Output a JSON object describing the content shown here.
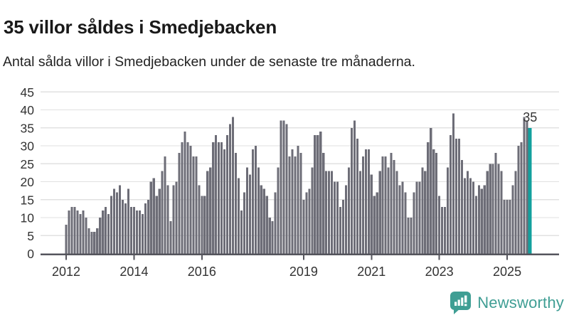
{
  "header": {
    "title": "35 villor såldes i Smedjebacken",
    "subtitle": "Antal sålda villor i Smedjebacken under de senaste tre månaderna."
  },
  "chart_data": {
    "type": "bar",
    "title": "35 villor såldes i Smedjebacken",
    "subtitle": "Antal sålda villor i Smedjebacken under de senaste tre månaderna.",
    "xlabel": "",
    "ylabel": "",
    "ylim": [
      0,
      45
    ],
    "yticks": [
      0,
      5,
      10,
      15,
      20,
      25,
      30,
      35,
      40,
      45
    ],
    "grid": true,
    "x_ticks": [
      {
        "label": "2012",
        "index": 0
      },
      {
        "label": "2014",
        "index": 24
      },
      {
        "label": "2016",
        "index": 48
      },
      {
        "label": "2019",
        "index": 84
      },
      {
        "label": "2021",
        "index": 108
      },
      {
        "label": "2023",
        "index": 132
      },
      {
        "label": "2025",
        "index": 156
      }
    ],
    "values": [
      8,
      12,
      13,
      13,
      12,
      11,
      12,
      10,
      7,
      6,
      6,
      7,
      10,
      12,
      13,
      11,
      16,
      18,
      17,
      19,
      15,
      14,
      18,
      13,
      13,
      12,
      12,
      11,
      14,
      15,
      20,
      21,
      16,
      18,
      23,
      27,
      19,
      9,
      19,
      20,
      28,
      31,
      34,
      31,
      30,
      27,
      27,
      19,
      16,
      16,
      23,
      24,
      31,
      33,
      31,
      31,
      29,
      33,
      36,
      38,
      28,
      21,
      12,
      17,
      24,
      22,
      29,
      30,
      24,
      19,
      18,
      16,
      10,
      9,
      17,
      24,
      37,
      37,
      36,
      27,
      29,
      27,
      30,
      28,
      15,
      17,
      18,
      24,
      33,
      33,
      34,
      28,
      23,
      23,
      23,
      20,
      20,
      13,
      15,
      19,
      24,
      35,
      37,
      32,
      23,
      27,
      29,
      29,
      22,
      16,
      17,
      23,
      27,
      27,
      24,
      28,
      26,
      23,
      19,
      20,
      17,
      10,
      10,
      17,
      20,
      20,
      24,
      23,
      31,
      35,
      29,
      28,
      16,
      13,
      13,
      24,
      33,
      39,
      32,
      32,
      26,
      21,
      23,
      21,
      20,
      16,
      19,
      18,
      19,
      23,
      25,
      25,
      28,
      25,
      23,
      15,
      15,
      15,
      19,
      23,
      30,
      31,
      38,
      37,
      35
    ],
    "highlight_last": {
      "value": 35,
      "label": "35"
    }
  },
  "colors": {
    "bar": "#6d6d77",
    "highlight": "#12a09d",
    "grid": "#e1e1e1",
    "axis": "#55555d",
    "tick_text": "#333333",
    "title": "#191919",
    "brand": "#3f9e94"
  },
  "footer": {
    "brand": "Newsworthy"
  }
}
